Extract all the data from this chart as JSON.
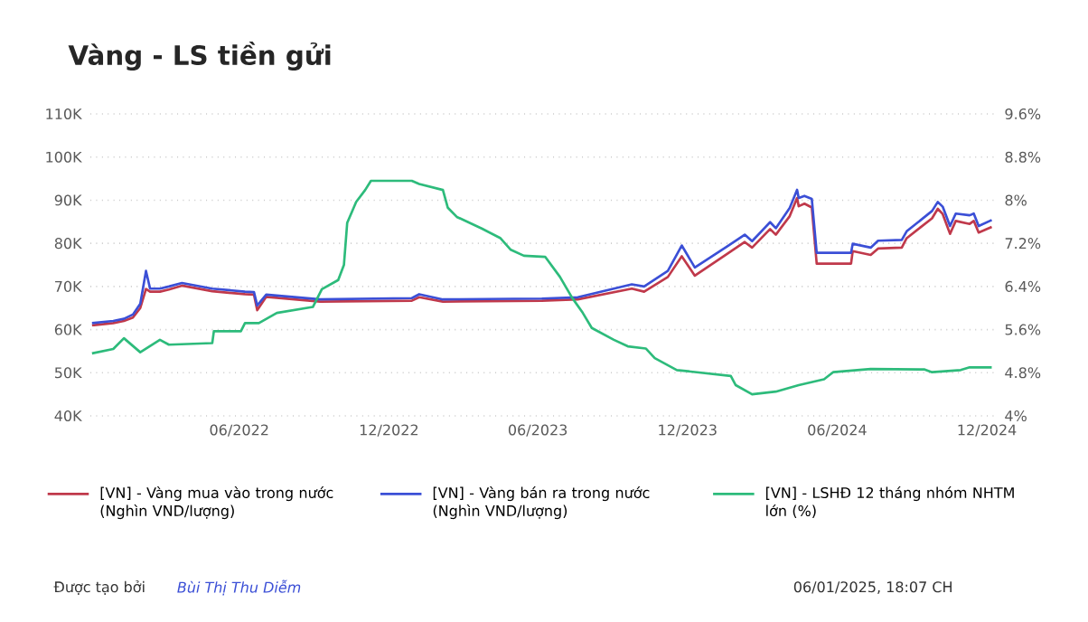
{
  "chart_data": {
    "type": "line",
    "title": "Vàng - LS tiền gửi",
    "xlim": [
      "2021-12-01",
      "2024-12-12"
    ],
    "xticks": [
      {
        "value": "2022-06-01",
        "label": "06/2022"
      },
      {
        "value": "2022-12-01",
        "label": "12/2022"
      },
      {
        "value": "2023-06-01",
        "label": "06/2023"
      },
      {
        "value": "2023-12-01",
        "label": "12/2023"
      },
      {
        "value": "2024-06-01",
        "label": "06/2024"
      },
      {
        "value": "2024-12-01",
        "label": "12/2024"
      }
    ],
    "ylim": [
      40000,
      110000
    ],
    "yticks": [
      {
        "value": 40000,
        "label": "40K"
      },
      {
        "value": 50000,
        "label": "50K"
      },
      {
        "value": 60000,
        "label": "60K"
      },
      {
        "value": 70000,
        "label": "70K"
      },
      {
        "value": 80000,
        "label": "80K"
      },
      {
        "value": 90000,
        "label": "90K"
      },
      {
        "value": 100000,
        "label": "100K"
      },
      {
        "value": 110000,
        "label": "110K"
      }
    ],
    "y2lim": [
      4,
      9.6
    ],
    "y2ticks": [
      {
        "value": 4,
        "label": "4%"
      },
      {
        "value": 4.8,
        "label": "4.8%"
      },
      {
        "value": 5.6,
        "label": "5.6%"
      },
      {
        "value": 6.4,
        "label": "6.4%"
      },
      {
        "value": 7.2,
        "label": "7.2%"
      },
      {
        "value": 8,
        "label": "8%"
      },
      {
        "value": 8.8,
        "label": "8.8%"
      },
      {
        "value": 9.6,
        "label": "9.6%"
      }
    ],
    "grid": "y",
    "legend": "bottom",
    "series": [
      {
        "name": "[VN] - Vàng mua vào trong nước (Nghìn VND/lượng)",
        "color": "#c0394b",
        "x": [
          "2021-12-03",
          "2021-12-29",
          "2022-01-11",
          "2022-01-22",
          "2022-01-31",
          "2022-02-07",
          "2022-02-12",
          "2022-02-24",
          "2022-03-07",
          "2022-03-23",
          "2022-04-29",
          "2022-06-08",
          "2022-06-19",
          "2022-06-23",
          "2022-07-04",
          "2022-09-08",
          "2022-12-29",
          "2023-01-07",
          "2023-02-05",
          "2023-06-06",
          "2023-07-20",
          "2023-09-24",
          "2023-10-09",
          "2023-11-07",
          "2023-11-24",
          "2023-12-10",
          "2024-01-18",
          "2024-02-09",
          "2024-02-18",
          "2024-03-11",
          "2024-03-18",
          "2024-04-04",
          "2024-04-13",
          "2024-04-15",
          "2024-04-22",
          "2024-05-01",
          "2024-05-07",
          "2024-06-18",
          "2024-06-20",
          "2024-07-12",
          "2024-07-21",
          "2024-08-19",
          "2024-08-25",
          "2024-09-25",
          "2024-10-02",
          "2024-10-08",
          "2024-10-17",
          "2024-10-24",
          "2024-11-10",
          "2024-11-15",
          "2024-11-21",
          "2024-12-07"
        ],
        "values": [
          61000,
          61500,
          62000,
          62800,
          65000,
          69400,
          68800,
          68800,
          69300,
          70200,
          68900,
          68200,
          68100,
          64500,
          67600,
          66500,
          66700,
          67500,
          66500,
          66700,
          67000,
          69500,
          68800,
          72200,
          77000,
          72500,
          77500,
          80300,
          79000,
          83300,
          82000,
          86300,
          90500,
          88600,
          89200,
          88300,
          75300,
          75300,
          78200,
          77300,
          78800,
          79000,
          81200,
          85800,
          88000,
          86800,
          82200,
          85200,
          84500,
          85200,
          82500,
          83800
        ]
      },
      {
        "name": "[VN] - Vàng bán ra trong nước (Nghìn VND/lượng)",
        "color": "#3b4fd6",
        "x": [
          "2021-12-03",
          "2021-12-29",
          "2022-01-11",
          "2022-01-22",
          "2022-01-31",
          "2022-02-07",
          "2022-02-12",
          "2022-02-24",
          "2022-03-07",
          "2022-03-23",
          "2022-04-29",
          "2022-06-08",
          "2022-06-19",
          "2022-06-23",
          "2022-07-04",
          "2022-09-08",
          "2022-12-29",
          "2023-01-07",
          "2023-02-05",
          "2023-06-06",
          "2023-07-20",
          "2023-09-24",
          "2023-10-09",
          "2023-11-07",
          "2023-11-24",
          "2023-12-10",
          "2024-01-18",
          "2024-02-09",
          "2024-02-18",
          "2024-03-11",
          "2024-03-18",
          "2024-04-04",
          "2024-04-13",
          "2024-04-15",
          "2024-04-22",
          "2024-05-01",
          "2024-05-07",
          "2024-06-18",
          "2024-06-20",
          "2024-07-12",
          "2024-07-21",
          "2024-08-19",
          "2024-08-25",
          "2024-09-25",
          "2024-10-02",
          "2024-10-08",
          "2024-10-17",
          "2024-10-24",
          "2024-11-10",
          "2024-11-15",
          "2024-11-21",
          "2024-12-07"
        ],
        "values": [
          61500,
          62000,
          62500,
          63500,
          66000,
          73600,
          69500,
          69500,
          70000,
          70800,
          69500,
          68800,
          68700,
          65600,
          68100,
          67000,
          67300,
          68200,
          67000,
          67200,
          67500,
          70500,
          70000,
          73600,
          79500,
          74400,
          79200,
          82000,
          80500,
          84900,
          83500,
          88200,
          92400,
          90500,
          91000,
          90300,
          77800,
          77800,
          79900,
          79000,
          80600,
          80800,
          82800,
          87500,
          89600,
          88500,
          84000,
          86900,
          86500,
          86900,
          84000,
          85400
        ]
      },
      {
        "name": "[VN] - LSHĐ 12 tháng nhóm NHTM lớn (%)",
        "color": "#2dbb7b",
        "axis": "y2",
        "x": [
          "2021-12-03",
          "2021-12-29",
          "2022-01-11",
          "2022-01-31",
          "2022-02-24",
          "2022-03-07",
          "2022-04-29",
          "2022-05-01",
          "2022-06-03",
          "2022-06-08",
          "2022-06-25",
          "2022-07-17",
          "2022-08-30",
          "2022-09-10",
          "2022-09-30",
          "2022-10-07",
          "2022-10-11",
          "2022-10-22",
          "2022-11-02",
          "2022-11-09",
          "2022-12-29",
          "2023-01-07",
          "2023-02-05",
          "2023-02-11",
          "2023-02-22",
          "2023-03-25",
          "2023-04-16",
          "2023-04-29",
          "2023-05-15",
          "2023-06-10",
          "2023-06-28",
          "2023-07-13",
          "2023-07-26",
          "2023-08-06",
          "2023-09-02",
          "2023-09-19",
          "2023-10-11",
          "2023-10-22",
          "2023-11-18",
          "2024-01-23",
          "2024-01-29",
          "2024-02-18",
          "2024-03-18",
          "2024-04-15",
          "2024-05-16",
          "2024-05-27",
          "2024-07-12",
          "2024-09-16",
          "2024-09-25",
          "2024-10-30",
          "2024-11-10",
          "2024-12-07"
        ],
        "values": [
          5.16,
          5.24,
          5.44,
          5.18,
          5.41,
          5.32,
          5.35,
          5.57,
          5.57,
          5.72,
          5.72,
          5.91,
          6.02,
          6.35,
          6.52,
          6.8,
          7.58,
          7.97,
          8.19,
          8.36,
          8.36,
          8.3,
          8.19,
          7.86,
          7.69,
          7.47,
          7.3,
          7.08,
          6.97,
          6.95,
          6.58,
          6.19,
          5.91,
          5.63,
          5.41,
          5.29,
          5.25,
          5.07,
          4.85,
          4.74,
          4.57,
          4.4,
          4.45,
          4.57,
          4.68,
          4.81,
          4.87,
          4.86,
          4.81,
          4.85,
          4.9,
          4.9
        ]
      }
    ],
    "annotations": [
      "Được tạo bởi",
      "Bùi Thị Thu Diễm",
      "06/01/2025, 18:07 CH"
    ]
  }
}
